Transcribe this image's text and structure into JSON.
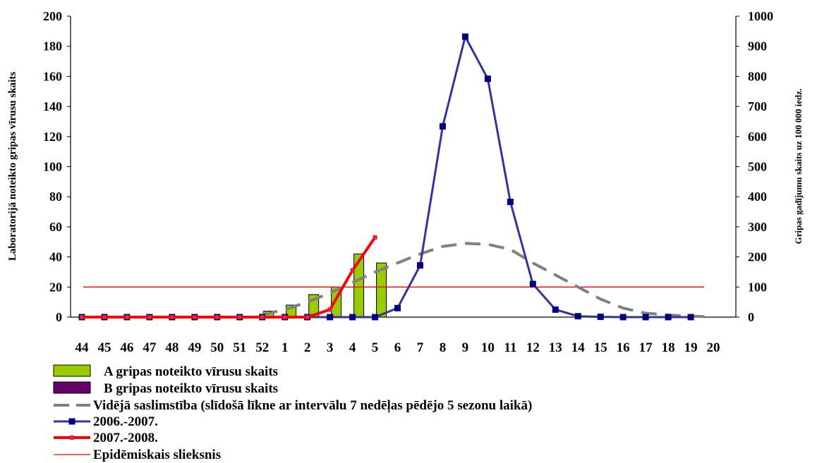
{
  "chart_data": {
    "type": "bar",
    "categories": [
      "44",
      "45",
      "46",
      "47",
      "48",
      "49",
      "50",
      "51",
      "52",
      "1",
      "2",
      "3",
      "4",
      "5",
      "6",
      "7",
      "8",
      "9",
      "10",
      "11",
      "12",
      "13",
      "14",
      "15",
      "16",
      "17",
      "18",
      "19",
      "20"
    ],
    "ylabel_left": "Laboratorijā noteikto gripas  vīrusu skaits",
    "ylabel_right": "Gripas gadījumu skaits uz 100 000 iedz.",
    "ylim_left": [
      0,
      200
    ],
    "ylim_right": [
      0,
      1000
    ],
    "yticks_left": [
      0,
      20,
      40,
      60,
      80,
      100,
      120,
      140,
      160,
      180,
      200
    ],
    "yticks_right": [
      0,
      100,
      200,
      300,
      400,
      500,
      600,
      700,
      800,
      900,
      1000
    ],
    "grid": false,
    "legend_position": "bottom-left",
    "bars": [
      {
        "name": "A gripas noteikto vīrusu skaits",
        "color": "#99CC00",
        "axis": "left",
        "values": [
          0,
          0,
          0,
          0,
          0,
          0,
          0,
          0,
          4,
          8,
          15,
          20,
          42,
          36,
          null,
          null,
          null,
          null,
          null,
          null,
          null,
          null,
          null,
          null,
          null,
          null,
          null,
          null,
          null
        ]
      },
      {
        "name": "B gripas noteikto vīrusu skaits",
        "color": "#660066",
        "axis": "left",
        "values": [
          0,
          0,
          0,
          0,
          0,
          0,
          0,
          0,
          0,
          0,
          0,
          0,
          0,
          0,
          null,
          null,
          null,
          null,
          null,
          null,
          null,
          null,
          null,
          null,
          null,
          null,
          null,
          null,
          null
        ]
      }
    ],
    "lines": [
      {
        "name": "Vidējā saslimstība (slīdošā līkne ar intervālu 7 nedēļas pēdējo 5 sezonu laikā)",
        "color": "#808080",
        "style": "dashed",
        "axis": "right",
        "values": [
          null,
          null,
          null,
          null,
          null,
          null,
          null,
          null,
          8,
          25,
          50,
          80,
          115,
          150,
          180,
          210,
          235,
          245,
          242,
          225,
          180,
          140,
          100,
          60,
          30,
          13,
          7,
          3,
          1
        ]
      },
      {
        "name": "2006.-2007.",
        "color": "#333399",
        "style": "solid-markers",
        "axis": "right",
        "values": [
          0,
          0,
          0,
          0,
          0,
          0,
          0,
          0,
          0,
          0,
          0,
          0,
          0,
          0,
          30,
          172,
          634,
          932,
          792,
          383,
          110,
          25,
          3,
          1,
          0,
          0,
          0,
          0,
          null
        ]
      },
      {
        "name": "2007.-2008.",
        "color": "#FF0000",
        "style": "solid-markers",
        "axis": "right",
        "values": [
          0,
          0,
          0,
          0,
          0,
          0,
          0,
          0,
          0,
          0,
          0,
          25,
          155,
          265,
          null,
          null,
          null,
          null,
          null,
          null,
          null,
          null,
          null,
          null,
          null,
          null,
          null,
          null,
          null
        ]
      },
      {
        "name": "Epidēmiskais slieksnis",
        "color": "#FF0000",
        "style": "thin",
        "axis": "right",
        "values": [
          100,
          100,
          100,
          100,
          100,
          100,
          100,
          100,
          100,
          100,
          100,
          100,
          100,
          100,
          100,
          100,
          100,
          100,
          100,
          100,
          100,
          100,
          100,
          100,
          100,
          100,
          100,
          100,
          100
        ]
      }
    ]
  }
}
